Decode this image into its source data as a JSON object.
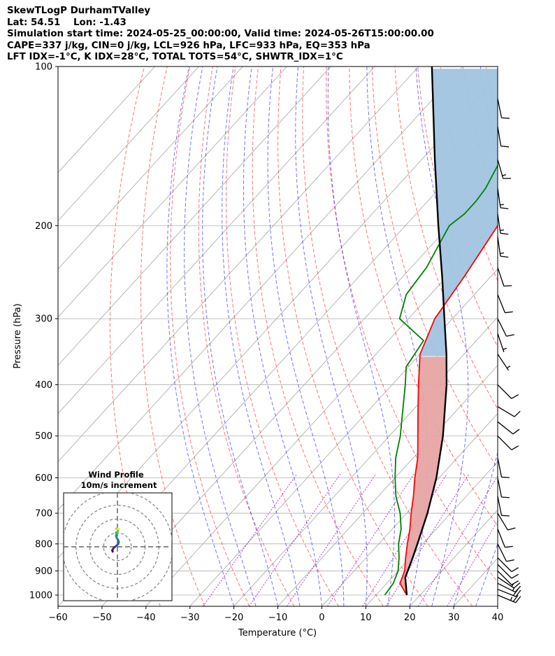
{
  "header": {
    "line1": "SkewTLogP DurhamTValley",
    "line2": "Lat: 54.51    Lon: -1.43",
    "line3": "Simulation start time: 2024-05-25_00:00:00, Valid time: 2024-05-26T15:00:00.00",
    "line4": "CAPE=337 j/kg, CIN=0 j/kg, LCL=926 hPa, LFC=933 hPa, EQ=353 hPa",
    "line5": "LFT IDX=-1°C, K IDX=28°C, TOTAL TOTS=54°C, SHWTR_IDX=1°C"
  },
  "chart_data": {
    "type": "line",
    "subtype": "skew-T log-P",
    "xlabel": "Temperature (°C)",
    "ylabel": "Pressure (hPa)",
    "xlim": [
      -60,
      40
    ],
    "ylim": [
      1050,
      100
    ],
    "y_scale": "log",
    "x_ticks": [
      "−60",
      "−50",
      "−40",
      "−30",
      "−20",
      "−10",
      "0",
      "10",
      "20",
      "30",
      "40"
    ],
    "y_ticks": [
      {
        "p": 1000,
        "label": "1000"
      },
      {
        "p": 900,
        "label": "900"
      },
      {
        "p": 800,
        "label": "800"
      },
      {
        "p": 700,
        "label": "700"
      },
      {
        "p": 600,
        "label": "600"
      },
      {
        "p": 500,
        "label": "500"
      },
      {
        "p": 400,
        "label": "400"
      },
      {
        "p": 300,
        "label": "300"
      },
      {
        "p": 200,
        "label": "200"
      },
      {
        "p": 100,
        "label": "100"
      }
    ],
    "grid": true,
    "series": [
      {
        "role": "temperature",
        "color": "#ff0000",
        "points": [
          [
            1000,
            17.0
          ],
          [
            950,
            13.0
          ],
          [
            900,
            11.5
          ],
          [
            850,
            9.0
          ],
          [
            800,
            6.5
          ],
          [
            750,
            4.0
          ],
          [
            700,
            1.0
          ],
          [
            650,
            -2.0
          ],
          [
            600,
            -5.5
          ],
          [
            550,
            -9.0
          ],
          [
            500,
            -13.5
          ],
          [
            450,
            -18.5
          ],
          [
            400,
            -24.0
          ],
          [
            370,
            -27.5
          ],
          [
            350,
            -30.0
          ],
          [
            330,
            -31.5
          ],
          [
            300,
            -34.0
          ],
          [
            250,
            -36.0
          ],
          [
            200,
            -39.0
          ],
          [
            180,
            -39.5
          ],
          [
            160,
            -40.0
          ],
          [
            140,
            -41.0
          ],
          [
            120,
            -43.5
          ],
          [
            100,
            -45.0
          ]
        ]
      },
      {
        "role": "dewpoint",
        "color": "#008000",
        "points": [
          [
            1000,
            12.0
          ],
          [
            950,
            11.5
          ],
          [
            900,
            10.0
          ],
          [
            850,
            7.5
          ],
          [
            800,
            4.5
          ],
          [
            750,
            2.0
          ],
          [
            700,
            -1.5
          ],
          [
            650,
            -6.0
          ],
          [
            600,
            -10.0
          ],
          [
            550,
            -14.0
          ],
          [
            500,
            -17.5
          ],
          [
            450,
            -22.0
          ],
          [
            400,
            -27.0
          ],
          [
            370,
            -30.5
          ],
          [
            330,
            -32.0
          ],
          [
            300,
            -42.0
          ],
          [
            270,
            -45.5
          ],
          [
            240,
            -46.5
          ],
          [
            200,
            -50.0
          ],
          [
            190,
            -49.0
          ],
          [
            180,
            -49.0
          ],
          [
            170,
            -49.5
          ],
          [
            150,
            -52.0
          ],
          [
            120,
            -56.5
          ],
          [
            100,
            -60.0
          ]
        ]
      },
      {
        "role": "parcel",
        "color": "#000000",
        "points": [
          [
            1000,
            17.0
          ],
          [
            926,
            13.0
          ],
          [
            900,
            12.2
          ],
          [
            850,
            10.6
          ],
          [
            800,
            8.8
          ],
          [
            700,
            4.7
          ],
          [
            600,
            -0.6
          ],
          [
            500,
            -7.8
          ],
          [
            400,
            -17.6
          ],
          [
            350,
            -24.0
          ],
          [
            300,
            -31.8
          ],
          [
            250,
            -41.0
          ],
          [
            200,
            -52.5
          ],
          [
            150,
            -67.0
          ],
          [
            100,
            -87.0
          ]
        ]
      }
    ],
    "cape_fill": "#a1c4e0",
    "cin_fill": "#e7a4a4",
    "wind_barbs": [
      {
        "p": 1000,
        "u": -12,
        "v": 5
      },
      {
        "p": 975,
        "u": -10,
        "v": 4
      },
      {
        "p": 950,
        "u": -8,
        "v": 4
      },
      {
        "p": 925,
        "u": -6,
        "v": 4
      },
      {
        "p": 900,
        "u": -4,
        "v": 4
      },
      {
        "p": 875,
        "u": -3,
        "v": 3
      },
      {
        "p": 850,
        "u": -3,
        "v": 3
      },
      {
        "p": 800,
        "u": -2,
        "v": 4
      },
      {
        "p": 750,
        "u": -2,
        "v": 5
      },
      {
        "p": 700,
        "u": -3,
        "v": 5
      },
      {
        "p": 650,
        "u": -1,
        "v": 5
      },
      {
        "p": 600,
        "u": -1,
        "v": 5
      },
      {
        "p": 550,
        "u": -1,
        "v": 5
      },
      {
        "p": 500,
        "u": -4,
        "v": 4
      },
      {
        "p": 470,
        "u": -5,
        "v": 4
      },
      {
        "p": 440,
        "u": -5,
        "v": 3
      },
      {
        "p": 400,
        "u": -3,
        "v": 3
      },
      {
        "p": 350,
        "u": -2,
        "v": 3
      },
      {
        "p": 320,
        "u": -1,
        "v": 3
      },
      {
        "p": 300,
        "u": -2,
        "v": 4
      },
      {
        "p": 270,
        "u": -2,
        "v": 5
      },
      {
        "p": 240,
        "u": -2,
        "v": 6
      },
      {
        "p": 210,
        "u": -1,
        "v": 7
      },
      {
        "p": 190,
        "u": -1,
        "v": 7
      },
      {
        "p": 170,
        "u": -1,
        "v": 7
      },
      {
        "p": 150,
        "u": -2,
        "v": 7
      },
      {
        "p": 130,
        "u": -1,
        "v": 6
      },
      {
        "p": 115,
        "u": -1,
        "v": 5
      }
    ],
    "hodograph": {
      "title": "Wind Profile",
      "subtitle": "10m/s increment",
      "rings_ms": [
        10,
        20,
        30,
        40
      ],
      "max_ms": 40,
      "points": [
        [
          -3.5,
          -3.5
        ],
        [
          -3.8,
          -2.5
        ],
        [
          -3.2,
          -1.5
        ],
        [
          -2.5,
          -0.5
        ],
        [
          -1.0,
          0.5
        ],
        [
          0.5,
          2.0
        ],
        [
          1.0,
          3.5
        ],
        [
          0.5,
          5.0
        ],
        [
          -0.5,
          6.5
        ],
        [
          -1.0,
          8.0
        ],
        [
          -0.5,
          9.5
        ],
        [
          -1.0,
          10.5
        ],
        [
          0.0,
          11.0
        ],
        [
          0.5,
          12.0
        ],
        [
          0.0,
          13.0
        ],
        [
          -1.0,
          13.5
        ],
        [
          0.5,
          13.5
        ],
        [
          1.0,
          13.0
        ]
      ]
    },
    "colors": {
      "dry_adiabat": "#ff0000",
      "moist_adiabat": "#0000ff",
      "isotherm": "#808080",
      "mixing_ratio": "#9400d3"
    }
  }
}
